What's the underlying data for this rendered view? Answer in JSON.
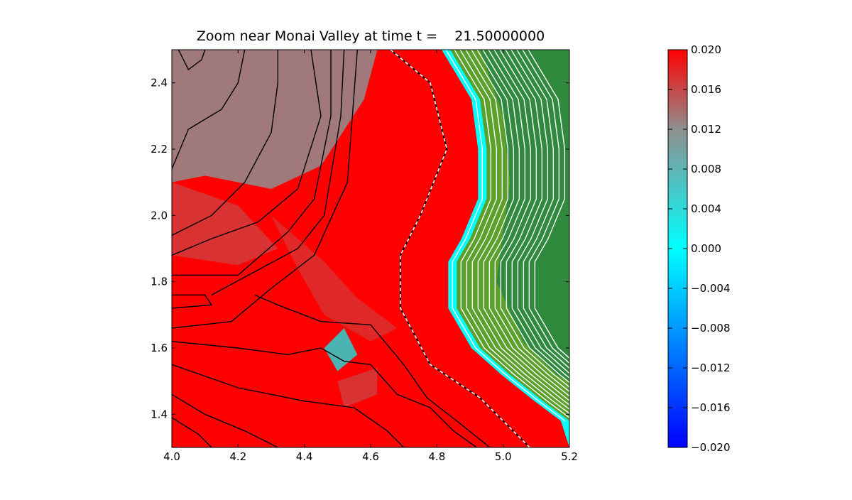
{
  "chart_data": {
    "type": "heatmap",
    "title": "Zoom near Monai Valley at time t =    21.50000000",
    "xlabel": "",
    "ylabel": "",
    "xlim": [
      4.0,
      5.2
    ],
    "ylim": [
      1.3,
      2.5
    ],
    "x_ticks": [
      "4.0",
      "4.2",
      "4.4",
      "4.6",
      "4.8",
      "5.0",
      "5.2"
    ],
    "y_ticks": [
      "1.4",
      "1.6",
      "1.8",
      "2.0",
      "2.2",
      "2.4"
    ],
    "grid": false,
    "colorbar": {
      "range": [
        -0.02,
        0.02
      ],
      "ticks": [
        "0.020",
        "0.016",
        "0.012",
        "0.008",
        "0.004",
        "0.000",
        "−0.004",
        "−0.008",
        "−0.012",
        "−0.016",
        "−0.020"
      ],
      "colormap": [
        {
          "v": 0.02,
          "color": "#ff0000"
        },
        {
          "v": 0.012,
          "color": "#8f8f8f"
        },
        {
          "v": 0.0,
          "color": "#00ffff"
        },
        {
          "v": -0.02,
          "color": "#0000ff"
        }
      ]
    },
    "dry_land_colors": {
      "near_shore": "#5aa02a",
      "inland": "#2f8a3e"
    },
    "contour_colors": {
      "water": "#000000",
      "land": "#ffffff",
      "shoreline": "#ffffff"
    },
    "shoreline": [
      [
        4.66,
        2.5
      ],
      [
        4.78,
        2.4
      ],
      [
        4.83,
        2.2
      ],
      [
        4.75,
        2.0
      ],
      [
        4.69,
        1.88
      ],
      [
        4.69,
        1.72
      ],
      [
        4.78,
        1.55
      ],
      [
        4.93,
        1.45
      ],
      [
        5.08,
        1.3
      ]
    ],
    "land_boundary": [
      [
        4.84,
        2.5
      ],
      [
        4.93,
        2.35
      ],
      [
        4.95,
        2.2
      ],
      [
        4.95,
        2.05
      ],
      [
        4.9,
        1.93
      ],
      [
        4.86,
        1.86
      ],
      [
        4.86,
        1.72
      ],
      [
        4.93,
        1.6
      ],
      [
        5.02,
        1.52
      ],
      [
        5.12,
        1.44
      ],
      [
        5.2,
        1.38
      ]
    ],
    "annotations": []
  }
}
